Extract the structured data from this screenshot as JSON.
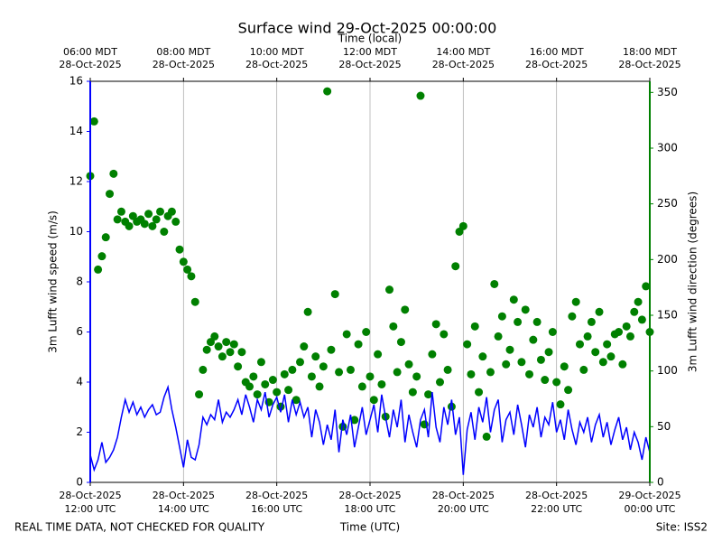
{
  "chart_data": {
    "type": "dual-axis-line-scatter",
    "title": "Surface wind 29-Oct-2025 00:00:00",
    "top_xlabel": "Time (local)",
    "xlabel": "Time (UTC)",
    "ylabel": "3m Lufft wind speed (m/s)",
    "y2label": "3m Lufft wind direction (degrees)",
    "footer_left": "REAL TIME DATA, NOT CHECKED FOR QUALITY",
    "footer_right": "Site: ISS2",
    "grid": true,
    "xlim": [
      "2025-10-28 12:00",
      "2025-10-29 00:00"
    ],
    "xticks": [
      {
        "value": "2025-10-28 12:00",
        "label": [
          "28-Oct-2025",
          "12:00 UTC"
        ]
      },
      {
        "value": "2025-10-28 14:00",
        "label": [
          "28-Oct-2025",
          "14:00 UTC"
        ]
      },
      {
        "value": "2025-10-28 16:00",
        "label": [
          "28-Oct-2025",
          "16:00 UTC"
        ]
      },
      {
        "value": "2025-10-28 18:00",
        "label": [
          "28-Oct-2025",
          "18:00 UTC"
        ]
      },
      {
        "value": "2025-10-28 20:00",
        "label": [
          "28-Oct-2025",
          "20:00 UTC"
        ]
      },
      {
        "value": "2025-10-28 22:00",
        "label": [
          "28-Oct-2025",
          "22:00 UTC"
        ]
      },
      {
        "value": "2025-10-29 00:00",
        "label": [
          "29-Oct-2025",
          "00:00 UTC"
        ]
      }
    ],
    "top_xticks": [
      {
        "value": "2025-10-28 12:00",
        "label": [
          "06:00 MDT",
          "28-Oct-2025"
        ]
      },
      {
        "value": "2025-10-28 14:00",
        "label": [
          "08:00 MDT",
          "28-Oct-2025"
        ]
      },
      {
        "value": "2025-10-28 16:00",
        "label": [
          "10:00 MDT",
          "28-Oct-2025"
        ]
      },
      {
        "value": "2025-10-28 18:00",
        "label": [
          "12:00 MDT",
          "28-Oct-2025"
        ]
      },
      {
        "value": "2025-10-28 20:00",
        "label": [
          "14:00 MDT",
          "28-Oct-2025"
        ]
      },
      {
        "value": "2025-10-28 22:00",
        "label": [
          "16:00 MDT",
          "28-Oct-2025"
        ]
      },
      {
        "value": "2025-10-29 00:00",
        "label": [
          "18:00 MDT",
          "28-Oct-2025"
        ]
      }
    ],
    "ylim": [
      0,
      16
    ],
    "yticks": [
      0,
      2,
      4,
      6,
      8,
      10,
      12,
      14,
      16
    ],
    "y_color": "#0000ff",
    "y2lim": [
      0,
      360
    ],
    "y2ticks": [
      0,
      50,
      100,
      150,
      200,
      250,
      300,
      350
    ],
    "y2_color": "#008000",
    "x": [
      "2025-10-28 12:00",
      "2025-10-28 12:05",
      "2025-10-28 12:10",
      "2025-10-28 12:15",
      "2025-10-28 12:20",
      "2025-10-28 12:25",
      "2025-10-28 12:30",
      "2025-10-28 12:35",
      "2025-10-28 12:40",
      "2025-10-28 12:45",
      "2025-10-28 12:50",
      "2025-10-28 12:55",
      "2025-10-28 13:00",
      "2025-10-28 13:05",
      "2025-10-28 13:10",
      "2025-10-28 13:15",
      "2025-10-28 13:20",
      "2025-10-28 13:25",
      "2025-10-28 13:30",
      "2025-10-28 13:35",
      "2025-10-28 13:40",
      "2025-10-28 13:45",
      "2025-10-28 13:50",
      "2025-10-28 13:55",
      "2025-10-28 14:00",
      "2025-10-28 14:05",
      "2025-10-28 14:10",
      "2025-10-28 14:15",
      "2025-10-28 14:20",
      "2025-10-28 14:25",
      "2025-10-28 14:30",
      "2025-10-28 14:35",
      "2025-10-28 14:40",
      "2025-10-28 14:45",
      "2025-10-28 14:50",
      "2025-10-28 14:55",
      "2025-10-28 15:00",
      "2025-10-28 15:05",
      "2025-10-28 15:10",
      "2025-10-28 15:15",
      "2025-10-28 15:20",
      "2025-10-28 15:25",
      "2025-10-28 15:30",
      "2025-10-28 15:35",
      "2025-10-28 15:40",
      "2025-10-28 15:45",
      "2025-10-28 15:50",
      "2025-10-28 15:55",
      "2025-10-28 16:00",
      "2025-10-28 16:05",
      "2025-10-28 16:10",
      "2025-10-28 16:15",
      "2025-10-28 16:20",
      "2025-10-28 16:25",
      "2025-10-28 16:30",
      "2025-10-28 16:35",
      "2025-10-28 16:40",
      "2025-10-28 16:45",
      "2025-10-28 16:50",
      "2025-10-28 16:55",
      "2025-10-28 17:00",
      "2025-10-28 17:05",
      "2025-10-28 17:10",
      "2025-10-28 17:15",
      "2025-10-28 17:20",
      "2025-10-28 17:25",
      "2025-10-28 17:30",
      "2025-10-28 17:35",
      "2025-10-28 17:40",
      "2025-10-28 17:45",
      "2025-10-28 17:50",
      "2025-10-28 17:55",
      "2025-10-28 18:00",
      "2025-10-28 18:05",
      "2025-10-28 18:10",
      "2025-10-28 18:15",
      "2025-10-28 18:20",
      "2025-10-28 18:25",
      "2025-10-28 18:30",
      "2025-10-28 18:35",
      "2025-10-28 18:40",
      "2025-10-28 18:45",
      "2025-10-28 18:50",
      "2025-10-28 18:55",
      "2025-10-28 19:00",
      "2025-10-28 19:05",
      "2025-10-28 19:10",
      "2025-10-28 19:15",
      "2025-10-28 19:20",
      "2025-10-28 19:25",
      "2025-10-28 19:30",
      "2025-10-28 19:35",
      "2025-10-28 19:40",
      "2025-10-28 19:45",
      "2025-10-28 19:50",
      "2025-10-28 19:55",
      "2025-10-28 20:00",
      "2025-10-28 20:05",
      "2025-10-28 20:10",
      "2025-10-28 20:15",
      "2025-10-28 20:20",
      "2025-10-28 20:25",
      "2025-10-28 20:30",
      "2025-10-28 20:35",
      "2025-10-28 20:40",
      "2025-10-28 20:45",
      "2025-10-28 20:50",
      "2025-10-28 20:55",
      "2025-10-28 21:00",
      "2025-10-28 21:05",
      "2025-10-28 21:10",
      "2025-10-28 21:15",
      "2025-10-28 21:20",
      "2025-10-28 21:25",
      "2025-10-28 21:30",
      "2025-10-28 21:35",
      "2025-10-28 21:40",
      "2025-10-28 21:45",
      "2025-10-28 21:50",
      "2025-10-28 21:55",
      "2025-10-28 22:00",
      "2025-10-28 22:05",
      "2025-10-28 22:10",
      "2025-10-28 22:15",
      "2025-10-28 22:20",
      "2025-10-28 22:25",
      "2025-10-28 22:30",
      "2025-10-28 22:35",
      "2025-10-28 22:40",
      "2025-10-28 22:45",
      "2025-10-28 22:50",
      "2025-10-28 22:55",
      "2025-10-28 23:00",
      "2025-10-28 23:05",
      "2025-10-28 23:10",
      "2025-10-28 23:15",
      "2025-10-28 23:20",
      "2025-10-28 23:25",
      "2025-10-28 23:30",
      "2025-10-28 23:35",
      "2025-10-28 23:40",
      "2025-10-28 23:45",
      "2025-10-28 23:50",
      "2025-10-28 23:55",
      "2025-10-29 00:00"
    ],
    "series": [
      {
        "name": "3m Lufft wind speed",
        "kind": "line",
        "axis": "y",
        "color": "#0000ff",
        "values": [
          1.1,
          0.5,
          0.9,
          1.6,
          0.8,
          1.0,
          1.3,
          1.8,
          2.6,
          3.3,
          2.8,
          3.2,
          2.7,
          3.0,
          2.6,
          2.9,
          3.1,
          2.7,
          2.8,
          3.4,
          3.8,
          2.9,
          2.2,
          1.4,
          0.6,
          1.7,
          1.0,
          0.9,
          1.5,
          2.6,
          2.3,
          2.7,
          2.5,
          3.3,
          2.4,
          2.8,
          2.6,
          2.9,
          3.3,
          2.7,
          3.5,
          3.0,
          2.4,
          3.3,
          2.9,
          3.6,
          2.6,
          3.1,
          3.4,
          2.8,
          3.5,
          2.4,
          3.3,
          2.7,
          3.2,
          2.6,
          3.0,
          1.8,
          2.9,
          2.4,
          1.5,
          2.3,
          1.7,
          2.9,
          1.2,
          2.5,
          1.9,
          2.7,
          1.4,
          2.2,
          3.0,
          1.9,
          2.5,
          3.1,
          2.0,
          3.5,
          2.6,
          1.8,
          2.9,
          2.2,
          3.3,
          1.6,
          2.7,
          2.0,
          1.4,
          2.5,
          2.9,
          1.8,
          3.6,
          2.2,
          1.6,
          3.0,
          2.3,
          3.3,
          1.9,
          2.6,
          0.3,
          2.1,
          2.8,
          1.7,
          3.0,
          2.4,
          3.4,
          2.0,
          2.9,
          3.3,
          1.6,
          2.5,
          2.8,
          1.9,
          3.1,
          2.3,
          1.4,
          2.7,
          2.2,
          3.0,
          1.8,
          2.6,
          2.3,
          3.2,
          2.0,
          2.5,
          1.7,
          2.9,
          2.1,
          1.5,
          2.4,
          2.0,
          2.6,
          1.6,
          2.3,
          2.7,
          1.8,
          2.4,
          1.5,
          2.1,
          2.6,
          1.7,
          2.2,
          1.3,
          2.0,
          1.6,
          0.9,
          1.8,
          1.2
        ]
      },
      {
        "name": "3m Lufft wind direction",
        "kind": "scatter",
        "axis": "y2",
        "color": "#008000",
        "values": [
          275,
          324,
          191,
          203,
          220,
          259,
          277,
          236,
          243,
          234,
          230,
          239,
          234,
          236,
          232,
          241,
          230,
          236,
          243,
          225,
          239,
          243,
          234,
          209,
          198,
          191,
          185,
          162,
          79,
          101,
          119,
          126,
          131,
          122,
          113,
          126,
          117,
          124,
          104,
          117,
          90,
          86,
          95,
          79,
          108,
          88,
          72,
          92,
          81,
          68,
          97,
          83,
          101,
          74,
          108,
          122,
          153,
          95,
          113,
          86,
          104,
          351,
          119,
          169,
          99,
          50,
          133,
          101,
          56,
          124,
          86,
          135,
          95,
          74,
          115,
          88,
          59,
          173,
          140,
          99,
          126,
          155,
          106,
          81,
          95,
          347,
          52,
          79,
          115,
          142,
          90,
          133,
          101,
          68,
          194,
          225,
          230,
          124,
          97,
          140,
          81,
          113,
          41,
          99,
          178,
          131,
          149,
          106,
          119,
          164,
          144,
          108,
          155,
          97,
          128,
          144,
          110,
          92,
          117,
          135,
          90,
          70,
          104,
          83,
          149,
          162,
          124,
          101,
          131,
          144,
          117,
          153,
          108,
          124,
          113,
          133,
          135,
          106,
          140,
          131,
          153,
          162,
          146,
          176,
          135
        ]
      }
    ]
  }
}
